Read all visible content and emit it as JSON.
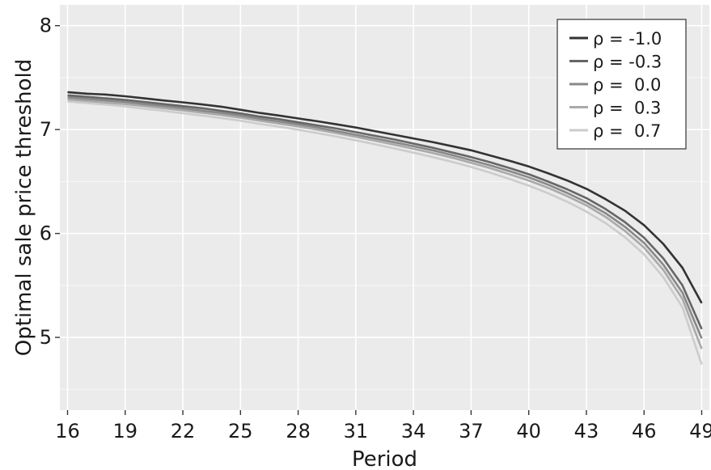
{
  "chart_data": {
    "type": "line",
    "title": "",
    "xlabel": "Period",
    "ylabel": "Optimal sale price threshold",
    "xlim": [
      15.6,
      49.4
    ],
    "ylim": [
      4.3,
      8.2
    ],
    "xticks": [
      "16",
      "19",
      "22",
      "25",
      "28",
      "31",
      "34",
      "37",
      "40",
      "43",
      "46",
      "49"
    ],
    "yticks": [
      "5",
      "6",
      "7",
      "8"
    ],
    "grid": true,
    "legend": "top-right",
    "x": [
      16,
      17,
      18,
      19,
      20,
      21,
      22,
      23,
      24,
      25,
      26,
      27,
      28,
      29,
      30,
      31,
      32,
      33,
      34,
      35,
      36,
      37,
      38,
      39,
      40,
      41,
      42,
      43,
      44,
      45,
      46,
      47,
      48,
      49
    ],
    "series": [
      {
        "name": "ρ = -1.0",
        "color": "#333333",
        "values": [
          7.36,
          7.345,
          7.337,
          7.32,
          7.3,
          7.28,
          7.262,
          7.242,
          7.22,
          7.19,
          7.16,
          7.135,
          7.107,
          7.08,
          7.05,
          7.02,
          6.985,
          6.95,
          6.915,
          6.88,
          6.84,
          6.8,
          6.75,
          6.7,
          6.645,
          6.58,
          6.51,
          6.43,
          6.33,
          6.22,
          6.08,
          5.9,
          5.67,
          5.33
        ]
      },
      {
        "name": "ρ = -0.3",
        "color": "#666666",
        "values": [
          7.33,
          7.315,
          7.3,
          7.285,
          7.265,
          7.245,
          7.225,
          7.205,
          7.18,
          7.155,
          7.125,
          7.1,
          7.07,
          7.04,
          7.01,
          6.975,
          6.94,
          6.905,
          6.865,
          6.825,
          6.78,
          6.735,
          6.685,
          6.63,
          6.57,
          6.5,
          6.425,
          6.34,
          6.235,
          6.11,
          5.96,
          5.76,
          5.5,
          5.08
        ]
      },
      {
        "name": "ρ =  0.0",
        "color": "#888888",
        "values": [
          7.31,
          7.295,
          7.28,
          7.265,
          7.245,
          7.225,
          7.205,
          7.182,
          7.16,
          7.135,
          7.105,
          7.078,
          7.05,
          7.02,
          6.985,
          6.95,
          6.915,
          6.878,
          6.84,
          6.8,
          6.755,
          6.705,
          6.655,
          6.6,
          6.54,
          6.47,
          6.39,
          6.3,
          6.195,
          6.065,
          5.91,
          5.7,
          5.43,
          4.99
        ]
      },
      {
        "name": "ρ =  0.3",
        "color": "#aaaaaa",
        "values": [
          7.29,
          7.275,
          7.26,
          7.245,
          7.225,
          7.205,
          7.185,
          7.162,
          7.14,
          7.115,
          7.085,
          7.058,
          7.03,
          7.0,
          6.965,
          6.93,
          6.893,
          6.855,
          6.815,
          6.775,
          6.73,
          6.68,
          6.628,
          6.57,
          6.51,
          6.44,
          6.36,
          6.27,
          6.16,
          6.025,
          5.865,
          5.65,
          5.37,
          4.89
        ]
      },
      {
        "name": "ρ =  0.7",
        "color": "#cccccc",
        "values": [
          7.27,
          7.255,
          7.24,
          7.222,
          7.2,
          7.18,
          7.158,
          7.135,
          7.11,
          7.085,
          7.055,
          7.028,
          6.998,
          6.966,
          6.932,
          6.896,
          6.858,
          6.818,
          6.778,
          6.735,
          6.69,
          6.64,
          6.585,
          6.525,
          6.46,
          6.388,
          6.305,
          6.21,
          6.1,
          5.965,
          5.8,
          5.58,
          5.29,
          4.74
        ]
      }
    ]
  }
}
